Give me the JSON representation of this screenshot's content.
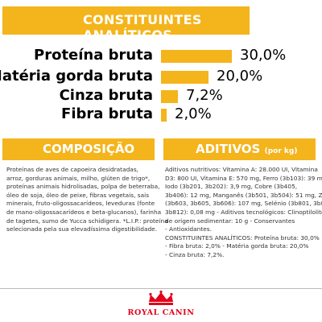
{
  "header": {
    "title": "CONSTITUINTES ANALÍTICOS"
  },
  "nutrients": [
    {
      "label": "Proteína bruta",
      "value": "30,0%",
      "level": 30.0
    },
    {
      "label": "Matéria gorda bruta",
      "value": "20,0%",
      "level": 20.0
    },
    {
      "label": "Cinza bruta",
      "value": "7,2%",
      "level": 7.2
    },
    {
      "label": "Fibra bruta",
      "value": "2,0%",
      "level": 2.0
    }
  ],
  "composition": {
    "title": "COMPOSIÇÃO",
    "lines": [
      "Proteínas de aves de capoeira desidratadas,",
      "arroz, gorduras animais, milho, glúten de trigo*,",
      "proteínas animais hidrolisadas, polpa de beterraba,",
      "óleo de soja, óleo de peixe, fibras vegetais, sais",
      "minerais, fruto-oligossacarídeos, leveduras (fonte",
      "de mano-oligossacarídeos e beta-glucanos), farinha",
      "de tagetes, sumo de Yucca schidigera. *L.I.P.: proteína",
      "selecionada pela sua elevadíssima digestibilidade."
    ]
  },
  "additives": {
    "title": "ADITIVOS",
    "unit": "(por kg)",
    "lines": [
      "Aditivos nutritivos: Vitamina A: 28.000 UI, Vitamina",
      "D3: 800 UI, Vitamina E: 570 mg, Ferro (3b103): 39 mg,",
      "Iodo (3b201, 3b202): 3,9 mg, Cobre (3b405,",
      "3b406): 12 mg, Manganês (3b501, 3b504): 51 mg, Zinco",
      "(3b603, 3b605, 3b606): 107 mg, Selénio (3b801, 3b811,",
      "3b812): 0,08 mg - Aditivos tecnológicos: Clinoptilolite",
      "de origem sedimentar: 10 g - Conservantes",
      "- Antioxidantes.",
      "CONSTITUINTES ANALÍTICOS: Proteína bruta: 30,0%",
      "- Fibra bruta: 2,0% - Matéria gorda bruta: 20,0%",
      "- Cinza bruta: 7,2%."
    ]
  },
  "logo": {
    "label": "ROYAL CANIN",
    "color": "#e2001a"
  },
  "colors": {
    "accent": "#f4b41b",
    "brand": "#e2001a"
  }
}
